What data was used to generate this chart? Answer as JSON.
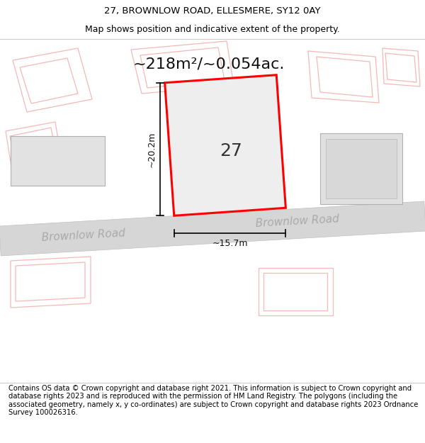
{
  "title_line1": "27, BROWNLOW ROAD, ELLESMERE, SY12 0AY",
  "title_line2": "Map shows position and indicative extent of the property.",
  "area_text": "~218m²/~0.054ac.",
  "label_27": "27",
  "dim_height": "~20.2m",
  "dim_width": "~15.7m",
  "road_label_left": "Brownlow Road",
  "road_label_right": "Brownlow Road",
  "footer_text": "Contains OS data © Crown copyright and database right 2021. This information is subject to Crown copyright and database rights 2023 and is reproduced with the permission of HM Land Registry. The polygons (including the associated geometry, namely x, y co-ordinates) are subject to Crown copyright and database rights 2023 Ordnance Survey 100026316.",
  "bg_color": "#f2f2f2",
  "property_edge": "#ff0000",
  "pink_line_color": "#f5b8b8",
  "title_fontsize": 9.5,
  "subtitle_fontsize": 9,
  "area_fontsize": 16,
  "label_fontsize": 18,
  "dim_fontsize": 9,
  "footer_fontsize": 7.2
}
